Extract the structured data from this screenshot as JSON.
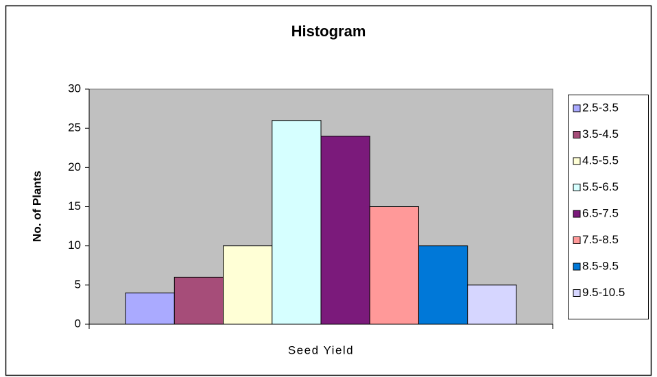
{
  "chart_data": {
    "type": "bar",
    "title": "Histogram",
    "xlabel": "Seed Yield",
    "ylabel": "No. of Plants",
    "categories": [
      null
    ],
    "series": [
      {
        "name": "2.5-3.5",
        "color": "#aaaaff",
        "values": [
          4
        ]
      },
      {
        "name": "3.5-4.5",
        "color": "#a64d79",
        "values": [
          6
        ]
      },
      {
        "name": "4.5-5.5",
        "color": "#ffffd6",
        "values": [
          10
        ]
      },
      {
        "name": "5.5-6.5",
        "color": "#d6ffff",
        "values": [
          26
        ]
      },
      {
        "name": "6.5-7.5",
        "color": "#7b1a7b",
        "values": [
          24
        ]
      },
      {
        "name": "7.5-8.5",
        "color": "#ff9999",
        "values": [
          15
        ]
      },
      {
        "name": "8.5-9.5",
        "color": "#0078d8",
        "values": [
          10
        ]
      },
      {
        "name": "9.5-10.5",
        "color": "#d6d6ff",
        "values": [
          5
        ]
      }
    ],
    "ylim": [
      0,
      30
    ],
    "yticks": [
      0,
      5,
      10,
      15,
      20,
      25,
      30
    ],
    "grid": false,
    "legend": "right",
    "plot_background": "#c0c0c0"
  }
}
